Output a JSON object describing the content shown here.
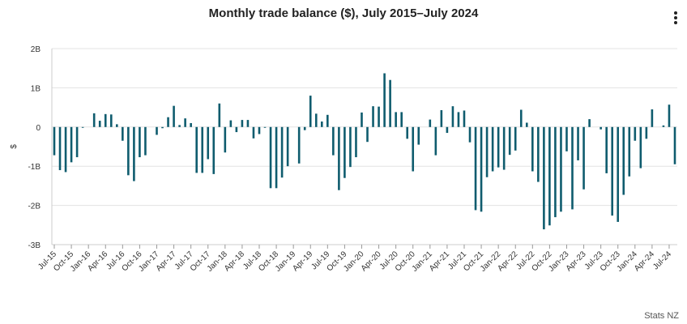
{
  "chart_data": {
    "type": "bar",
    "title": "Monthly trade balance ($), July 2015–July 2024",
    "xlabel": "",
    "ylabel": "$",
    "ylim": [
      -3000000000,
      2000000000
    ],
    "yticks": [
      {
        "value": 2000000000,
        "label": "2B"
      },
      {
        "value": 1000000000,
        "label": "1B"
      },
      {
        "value": 0,
        "label": "0"
      },
      {
        "value": -1000000000,
        "label": "-1B"
      },
      {
        "value": -2000000000,
        "label": "-2B"
      },
      {
        "value": -3000000000,
        "label": "-3B"
      }
    ],
    "xtick_labels": [
      "Jul-15",
      "Oct-15",
      "Jan-16",
      "Apr-16",
      "Jul-16",
      "Oct-16",
      "Jan-17",
      "Apr-17",
      "Jul-17",
      "Oct-17",
      "Jan-18",
      "Apr-18",
      "Jul-18",
      "Oct-18",
      "Jan-19",
      "Apr-19",
      "Jul-19",
      "Oct-19",
      "Jan-20",
      "Apr-20",
      "Jul-20",
      "Oct-20",
      "Jan-21",
      "Apr-21",
      "Jul-21",
      "Oct-21",
      "Jan-22",
      "Apr-22",
      "Jul-22",
      "Oct-22",
      "Jan-23",
      "Apr-23",
      "Jul-23",
      "Oct-23",
      "Jan-24",
      "Apr-24",
      "Jul-24"
    ],
    "start": "Jul-15",
    "color": "#0f5c6e",
    "values": [
      -720000000,
      -1100000000,
      -1150000000,
      -900000000,
      -770000000,
      -20000000,
      0,
      350000000,
      160000000,
      330000000,
      320000000,
      70000000,
      -350000000,
      -1230000000,
      -1380000000,
      -770000000,
      -720000000,
      0,
      -200000000,
      -30000000,
      250000000,
      540000000,
      50000000,
      220000000,
      100000000,
      -1170000000,
      -1170000000,
      -820000000,
      -1200000000,
      600000000,
      -650000000,
      170000000,
      -130000000,
      180000000,
      180000000,
      -290000000,
      -180000000,
      -20000000,
      -1560000000,
      -1560000000,
      -1290000000,
      -1000000000,
      0,
      -930000000,
      -80000000,
      800000000,
      340000000,
      140000000,
      310000000,
      -720000000,
      -1610000000,
      -1300000000,
      -1020000000,
      -770000000,
      370000000,
      -380000000,
      530000000,
      520000000,
      1370000000,
      1200000000,
      380000000,
      380000000,
      -300000000,
      -1130000000,
      -450000000,
      0,
      190000000,
      -720000000,
      430000000,
      -150000000,
      530000000,
      380000000,
      420000000,
      -390000000,
      -2120000000,
      -2160000000,
      -1280000000,
      -1130000000,
      -1030000000,
      -1090000000,
      -710000000,
      -600000000,
      440000000,
      110000000,
      -1130000000,
      -1400000000,
      -2610000000,
      -2510000000,
      -2300000000,
      -2160000000,
      -620000000,
      -2100000000,
      -850000000,
      -1590000000,
      200000000,
      0,
      -60000000,
      -1180000000,
      -2260000000,
      -2420000000,
      -1730000000,
      -1260000000,
      -350000000,
      -1050000000,
      -300000000,
      450000000,
      0,
      40000000,
      570000000,
      -950000000
    ]
  },
  "menu": {
    "icon": "menu-icon"
  },
  "source": "Stats NZ"
}
